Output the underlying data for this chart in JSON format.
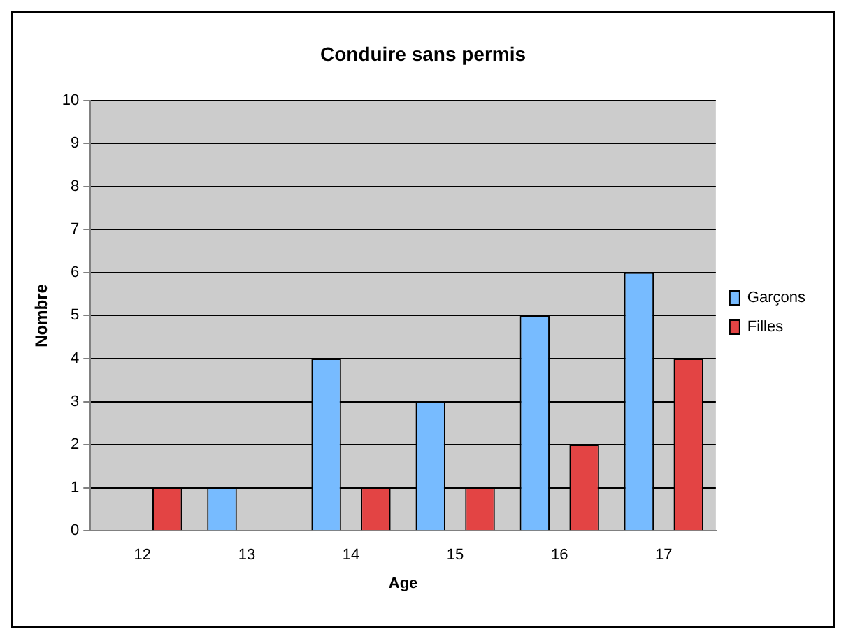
{
  "chart_data": {
    "type": "bar",
    "title": "Conduire sans permis",
    "xlabel": "Age",
    "ylabel": "Nombre",
    "categories": [
      "12",
      "13",
      "14",
      "15",
      "16",
      "17"
    ],
    "series": [
      {
        "name": "Garçons",
        "color": "#77bbff",
        "values": [
          null,
          1,
          4,
          3,
          5,
          6
        ]
      },
      {
        "name": "Filles",
        "color": "#e34444",
        "values": [
          1,
          null,
          1,
          1,
          2,
          4
        ]
      }
    ],
    "ylim": [
      0,
      10
    ],
    "yticks": [
      0,
      1,
      2,
      3,
      4,
      5,
      6,
      7,
      8,
      9,
      10
    ],
    "grid": "y",
    "legend": "right"
  }
}
